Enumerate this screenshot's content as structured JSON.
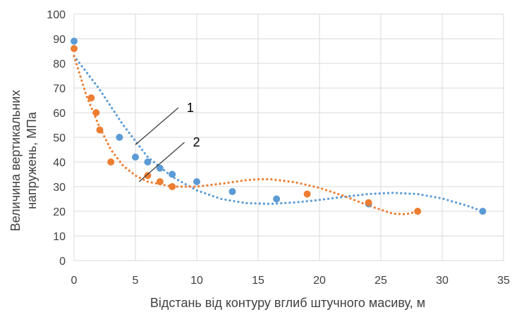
{
  "chart_data": {
    "type": "scatter",
    "title": "",
    "xlabel": "Відстань від контуру вглиб штучного масиву, м",
    "ylabel_line1": "Величина вертикальних",
    "ylabel_line2": "напружень, МПа",
    "xlim": [
      0,
      35
    ],
    "ylim": [
      0,
      100
    ],
    "xticks": [
      0,
      5,
      10,
      15,
      20,
      25,
      30,
      35
    ],
    "yticks": [
      0,
      10,
      20,
      30,
      40,
      50,
      60,
      70,
      80,
      90,
      100
    ],
    "grid": true,
    "legend": "none",
    "colors": {
      "series1": "#5b9bd5",
      "series2": "#ed7d31",
      "grid": "#d9d9d9",
      "annotation": "#404040"
    },
    "series": [
      {
        "label": "1",
        "color": "#5b9bd5",
        "points": [
          [
            0,
            89
          ],
          [
            3.7,
            50
          ],
          [
            5,
            42
          ],
          [
            6,
            40
          ],
          [
            7,
            37.5
          ],
          [
            8,
            35
          ],
          [
            10,
            32
          ],
          [
            12.9,
            28
          ],
          [
            16.5,
            25
          ],
          [
            24,
            23
          ],
          [
            33.3,
            20
          ]
        ],
        "trend": [
          [
            0,
            83
          ],
          [
            2,
            70
          ],
          [
            4,
            55
          ],
          [
            6,
            42
          ],
          [
            8,
            34
          ],
          [
            10,
            28.5
          ],
          [
            12,
            25
          ],
          [
            14,
            23.3
          ],
          [
            16,
            23
          ],
          [
            18,
            23.6
          ],
          [
            20,
            24.6
          ],
          [
            22,
            25.9
          ],
          [
            24,
            27
          ],
          [
            26,
            27.5
          ],
          [
            28,
            27
          ],
          [
            30,
            25.2
          ],
          [
            32,
            22.3
          ],
          [
            33.3,
            20
          ]
        ]
      },
      {
        "label": "2",
        "color": "#ed7d31",
        "points": [
          [
            0,
            86
          ],
          [
            1.4,
            66
          ],
          [
            1.8,
            60
          ],
          [
            2.1,
            53
          ],
          [
            3,
            40
          ],
          [
            6,
            34.5
          ],
          [
            7,
            32
          ],
          [
            8,
            30
          ],
          [
            19,
            27
          ],
          [
            24,
            23.5
          ],
          [
            28,
            20
          ]
        ],
        "trend": [
          [
            0,
            83
          ],
          [
            1,
            67
          ],
          [
            2,
            55
          ],
          [
            3,
            45
          ],
          [
            4,
            38.5
          ],
          [
            5,
            34.5
          ],
          [
            6,
            32
          ],
          [
            8,
            30
          ],
          [
            10,
            30
          ],
          [
            12,
            31.2
          ],
          [
            14,
            32.6
          ],
          [
            15,
            33
          ],
          [
            16,
            33
          ],
          [
            18,
            31.8
          ],
          [
            20,
            29.5
          ],
          [
            22,
            26.2
          ],
          [
            24,
            22.3
          ],
          [
            26,
            19
          ],
          [
            27,
            18.8
          ],
          [
            28,
            19.8
          ]
        ]
      }
    ],
    "annotations": [
      {
        "text": "1",
        "line": [
          [
            5,
            47
          ],
          [
            8.5,
            62
          ]
        ]
      },
      {
        "text": "2",
        "line": [
          [
            5.3,
            32
          ],
          [
            9,
            48
          ]
        ]
      }
    ]
  }
}
